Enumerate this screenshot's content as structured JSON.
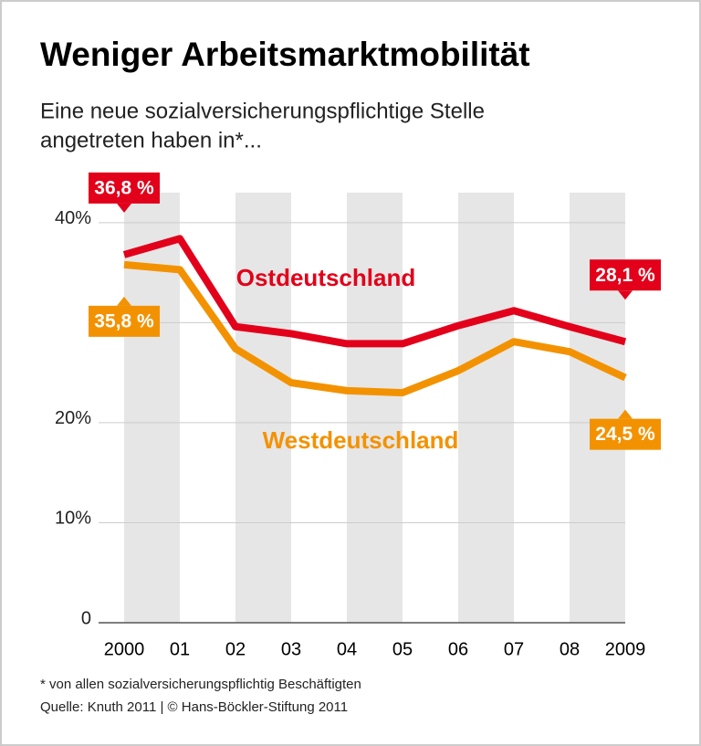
{
  "chart_data": {
    "type": "line",
    "title": "Weniger Arbeitsmarktmobilität",
    "subtitle": [
      "Eine neue sozialversicherungspflichtige Stelle",
      "angetreten haben in*..."
    ],
    "categories": [
      "2000",
      "01",
      "02",
      "03",
      "04",
      "05",
      "06",
      "07",
      "08",
      "2009"
    ],
    "series": [
      {
        "name": "Ostdeutschland",
        "color": "#e2001a",
        "values": [
          36.8,
          38.4,
          29.6,
          28.9,
          27.9,
          27.9,
          29.7,
          31.2,
          29.6,
          28.1
        ],
        "value_labels": [
          "36,8 %",
          null,
          null,
          null,
          null,
          null,
          null,
          null,
          null,
          "28,1 %"
        ]
      },
      {
        "name": "Westdeutschland",
        "color": "#f39200",
        "values": [
          35.8,
          35.3,
          27.4,
          24.0,
          23.2,
          23.0,
          25.2,
          28.1,
          27.1,
          24.5
        ],
        "value_labels": [
          "35,8 %",
          null,
          null,
          null,
          null,
          null,
          null,
          null,
          null,
          "24,5 %"
        ]
      }
    ],
    "ylim": [
      0,
      43
    ],
    "yticks": [
      0,
      {
        "value": 10,
        "label": "10%"
      },
      {
        "value": 20,
        "label": "20%"
      },
      {
        "value": 30,
        "label": null
      },
      {
        "value": 40,
        "label": "40%"
      }
    ],
    "grid": true,
    "footnote": "* von allen sozialversicherungspflichtig Beschäftigten",
    "source": "Quelle: Knuth 2011 | © Hans-Böckler-Stiftung 2011"
  }
}
